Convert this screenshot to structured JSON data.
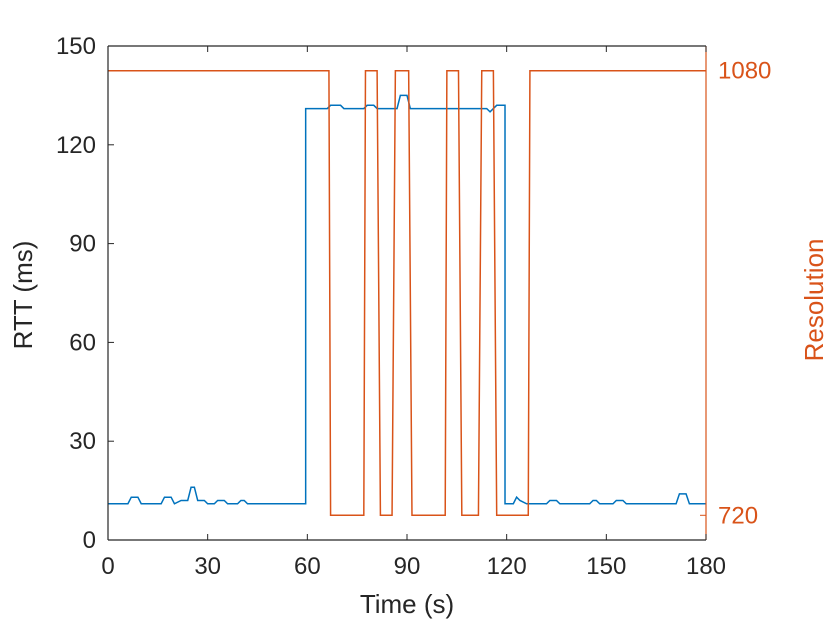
{
  "chart_data": {
    "type": "line",
    "xlabel": "Time (s)",
    "ylabel_left": "RTT (ms)",
    "ylabel_right": "Resolution",
    "xlim": [
      0,
      180
    ],
    "ylim_left": [
      0,
      150
    ],
    "ylim_right": [
      720,
      1080
    ],
    "xticks": [
      0,
      30,
      60,
      90,
      120,
      150,
      180
    ],
    "yticks_left": [
      0,
      30,
      60,
      90,
      120,
      150
    ],
    "yticks_right": [
      720,
      1080
    ],
    "grid": false,
    "colors": {
      "rtt": "#0072BD",
      "resolution": "#D95319",
      "axis": "#262626"
    },
    "series": [
      {
        "axis": "left",
        "values": [
          [
            0,
            11
          ],
          [
            6,
            11
          ],
          [
            7,
            13
          ],
          [
            9,
            13
          ],
          [
            10,
            11
          ],
          [
            16,
            11
          ],
          [
            17,
            13
          ],
          [
            19,
            13
          ],
          [
            20,
            11
          ],
          [
            22,
            12
          ],
          [
            24,
            12
          ],
          [
            25,
            16
          ],
          [
            26,
            16
          ],
          [
            27,
            12
          ],
          [
            29,
            12
          ],
          [
            30,
            11
          ],
          [
            32,
            11
          ],
          [
            33,
            12
          ],
          [
            35,
            12
          ],
          [
            36,
            11
          ],
          [
            39,
            11
          ],
          [
            40,
            12
          ],
          [
            41,
            12
          ],
          [
            42,
            11
          ],
          [
            59.5,
            11
          ],
          [
            59.5,
            131
          ],
          [
            66,
            131
          ],
          [
            67,
            132
          ],
          [
            70,
            132
          ],
          [
            71,
            131
          ],
          [
            77,
            131
          ],
          [
            78,
            132
          ],
          [
            80,
            132
          ],
          [
            81,
            131
          ],
          [
            87,
            131
          ],
          [
            88,
            135
          ],
          [
            90,
            135
          ],
          [
            91,
            131
          ],
          [
            114,
            131
          ],
          [
            115,
            130
          ],
          [
            116,
            131
          ],
          [
            117,
            132
          ],
          [
            119,
            132
          ],
          [
            119.5,
            132
          ],
          [
            119.5,
            11
          ],
          [
            122,
            11
          ],
          [
            123,
            13
          ],
          [
            124,
            12
          ],
          [
            126,
            11
          ],
          [
            132,
            11
          ],
          [
            133,
            12
          ],
          [
            135,
            12
          ],
          [
            136,
            11
          ],
          [
            145,
            11
          ],
          [
            146,
            12
          ],
          [
            147,
            12
          ],
          [
            148,
            11
          ],
          [
            152,
            11
          ],
          [
            153,
            12
          ],
          [
            155,
            12
          ],
          [
            156,
            11
          ],
          [
            171,
            11
          ],
          [
            172,
            14
          ],
          [
            174,
            14
          ],
          [
            175,
            11
          ],
          [
            180,
            11
          ]
        ]
      },
      {
        "axis": "right",
        "values": [
          [
            0,
            1080
          ],
          [
            66.5,
            1080
          ],
          [
            67,
            720
          ],
          [
            77,
            720
          ],
          [
            77.5,
            1080
          ],
          [
            81,
            1080
          ],
          [
            82,
            720
          ],
          [
            85.5,
            720
          ],
          [
            86.5,
            1080
          ],
          [
            90.5,
            1080
          ],
          [
            91.5,
            720
          ],
          [
            101.5,
            720
          ],
          [
            102,
            1080
          ],
          [
            105.5,
            1080
          ],
          [
            106.5,
            720
          ],
          [
            111.5,
            720
          ],
          [
            112.5,
            1080
          ],
          [
            116,
            1080
          ],
          [
            117,
            720
          ],
          [
            126.5,
            720
          ],
          [
            127,
            1080
          ],
          [
            180,
            1080
          ]
        ]
      }
    ]
  }
}
